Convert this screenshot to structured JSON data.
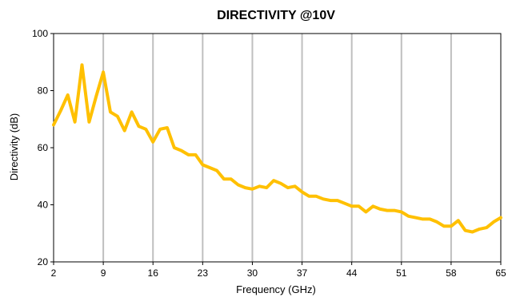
{
  "chart_data": {
    "type": "line",
    "title": "DIRECTIVITY @10V",
    "xlabel": "Frequency (GHz)",
    "ylabel": "Directivity (dB)",
    "xlim": [
      2,
      65
    ],
    "ylim": [
      20,
      100
    ],
    "xticks": [
      2,
      9,
      16,
      23,
      30,
      37,
      44,
      51,
      58,
      65
    ],
    "yticks": [
      20,
      40,
      60,
      80,
      100
    ],
    "grid": "vertical",
    "line_color": "#FFC000",
    "series": [
      {
        "x": [
          2,
          3,
          4,
          5,
          6,
          7,
          8,
          9,
          10,
          11,
          12,
          13,
          14,
          15,
          16,
          17,
          18,
          19,
          20,
          21,
          22,
          23,
          24,
          25,
          26,
          27,
          28,
          29,
          30,
          31,
          32,
          33,
          34,
          35,
          36,
          37,
          38,
          39,
          40,
          41,
          42,
          43,
          44,
          45,
          46,
          47,
          48,
          49,
          50,
          51,
          52,
          53,
          54,
          55,
          56,
          57,
          58,
          59,
          60,
          61,
          62,
          63,
          64,
          65
        ],
        "values": [
          68,
          73,
          78.5,
          69,
          89,
          69,
          78,
          86.5,
          72.5,
          71,
          66,
          72.5,
          67.5,
          66.5,
          62,
          66.5,
          67,
          60,
          59,
          57.5,
          57.5,
          54,
          53,
          52,
          49,
          49,
          47,
          46,
          45.5,
          46.5,
          46,
          48.5,
          47.5,
          46,
          46.5,
          44.5,
          43,
          43,
          42,
          41.5,
          41.5,
          40.5,
          39.5,
          39.5,
          37.5,
          39.5,
          38.5,
          38,
          38,
          37.5,
          36,
          35.5,
          35,
          35,
          34,
          32.5,
          32.5,
          34.5,
          31,
          30.5,
          31.5,
          32,
          34,
          35.5
        ]
      }
    ]
  }
}
